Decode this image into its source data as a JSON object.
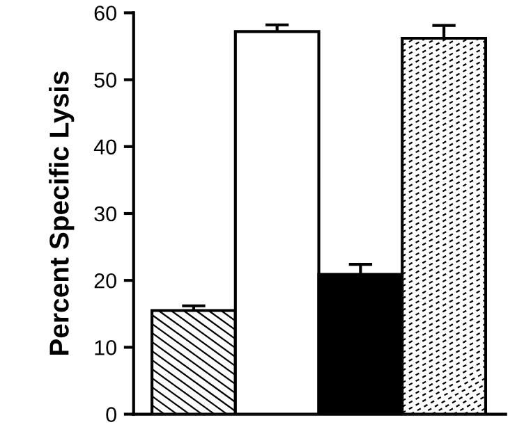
{
  "chart_data": {
    "type": "bar",
    "ylabel": "Percent Specific Lysis",
    "categories": [
      null,
      null,
      null,
      null
    ],
    "values": [
      15.5,
      57.2,
      20.9,
      56.2
    ],
    "errors": [
      0.7,
      1.0,
      1.5,
      1.9
    ],
    "colors": [
      "#ffffff",
      "#ffffff",
      "#000000",
      "#ffffff"
    ],
    "ylim": [
      0,
      60
    ],
    "yticks": [
      0,
      10,
      20,
      30,
      40,
      50,
      60
    ],
    "grid": false,
    "legend": false
  }
}
